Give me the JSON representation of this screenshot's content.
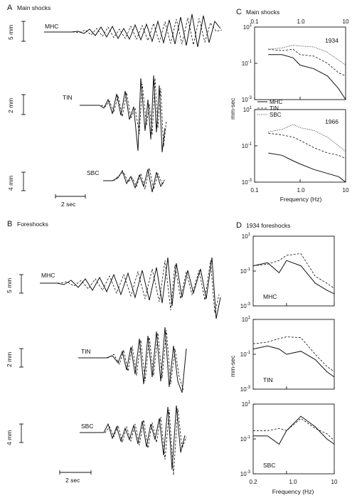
{
  "panels": {
    "A": {
      "letter": "A",
      "title": "Main shocks"
    },
    "B": {
      "letter": "B",
      "title": "Foreshocks"
    },
    "C": {
      "letter": "C",
      "title": "Main shocks"
    },
    "D": {
      "letter": "D",
      "title": "1934 foreshocks"
    }
  },
  "seismograms": {
    "main": [
      {
        "station": "MHC",
        "scale": "5 mm"
      },
      {
        "station": "TIN",
        "scale": "2 mm"
      },
      {
        "station": "SBC",
        "scale": "4 mm"
      }
    ],
    "fore": [
      {
        "station": "MHC",
        "scale": "5 mm"
      },
      {
        "station": "TIN",
        "scale": "2 mm"
      },
      {
        "station": "SBC",
        "scale": "4 mm"
      }
    ],
    "time_bar": "2 sec"
  },
  "spectra": {
    "ylabel": "mm-sec",
    "xlabel": "Frequency (Hz)",
    "c_top_ticks": [
      "0.1",
      "1.0",
      "10"
    ],
    "c_x_ticks": [
      "0.1",
      "1.0",
      "10"
    ],
    "d_x_ticks": [
      "0.2",
      "1.0",
      "10"
    ],
    "y_ticks": {
      "base": "10",
      "exps": [
        "1",
        "-1",
        "-3"
      ]
    },
    "legend": [
      {
        "label": "MHC",
        "style": "solid"
      },
      {
        "label": "TIN",
        "style": "dashed"
      },
      {
        "label": "SBC",
        "style": "dotted"
      }
    ],
    "years": [
      "1934",
      "1966"
    ],
    "d_stations": [
      "MHC",
      "TIN",
      "SBC"
    ]
  },
  "chart_data": [
    {
      "type": "line",
      "title": "Main shocks",
      "subtitle": "1934",
      "xlabel": "Frequency (Hz)",
      "ylabel": "mm-sec",
      "x_scale": "log",
      "y_scale": "log",
      "xlim": [
        0.1,
        10
      ],
      "ylim": [
        0.001,
        10
      ],
      "series": [
        {
          "name": "MHC",
          "x": [
            0.2,
            0.4,
            0.7,
            1.0,
            2.0,
            4.0,
            7.0,
            10.0
          ],
          "y": [
            0.3,
            0.3,
            0.2,
            0.08,
            0.05,
            0.02,
            0.004,
            0.001
          ]
        },
        {
          "name": "TIN",
          "x": [
            0.2,
            0.4,
            0.7,
            1.0,
            2.0,
            4.0,
            7.0,
            10.0
          ],
          "y": [
            0.6,
            0.5,
            0.6,
            0.3,
            0.25,
            0.1,
            0.03,
            0.02
          ]
        },
        {
          "name": "SBC",
          "x": [
            0.2,
            0.4,
            0.7,
            1.0,
            2.0,
            4.0,
            7.0,
            10.0
          ],
          "y": [
            0.6,
            0.7,
            1.0,
            0.9,
            0.8,
            0.4,
            0.15,
            0.08
          ]
        }
      ]
    },
    {
      "type": "line",
      "title": "Main shocks",
      "subtitle": "1966",
      "xlabel": "Frequency (Hz)",
      "ylabel": "mm-sec",
      "x_scale": "log",
      "y_scale": "log",
      "xlim": [
        0.1,
        10
      ],
      "ylim": [
        0.001,
        10
      ],
      "series": [
        {
          "name": "MHC",
          "x": [
            0.2,
            0.4,
            0.7,
            1.0,
            2.0,
            4.0,
            7.0,
            10.0
          ],
          "y": [
            0.04,
            0.03,
            0.015,
            0.01,
            0.005,
            0.003,
            0.002,
            0.001
          ]
        },
        {
          "name": "TIN",
          "x": [
            0.2,
            0.4,
            0.7,
            1.0,
            2.0,
            4.0,
            7.0,
            10.0
          ],
          "y": [
            0.5,
            0.4,
            0.3,
            0.2,
            0.08,
            0.04,
            0.03,
            0.02
          ]
        },
        {
          "name": "SBC",
          "x": [
            0.2,
            0.4,
            0.7,
            1.0,
            2.0,
            4.0,
            7.0,
            10.0
          ],
          "y": [
            0.6,
            0.8,
            1.5,
            1.0,
            0.7,
            0.3,
            0.1,
            0.05
          ]
        }
      ]
    },
    {
      "type": "line",
      "title": "1934 foreshocks",
      "subtitle": "MHC",
      "xlabel": "Frequency (Hz)",
      "ylabel": "mm-sec",
      "x_scale": "log",
      "y_scale": "log",
      "xlim": [
        0.2,
        10
      ],
      "ylim": [
        0.001,
        10
      ],
      "series": [
        {
          "name": "solid",
          "x": [
            0.2,
            0.4,
            0.7,
            1.0,
            2.0,
            4.0,
            7.0,
            10.0
          ],
          "y": [
            0.2,
            0.3,
            0.08,
            0.4,
            0.2,
            0.02,
            0.008,
            0.005
          ]
        },
        {
          "name": "dashed",
          "x": [
            0.2,
            0.4,
            0.7,
            1.0,
            2.0,
            4.0,
            7.0,
            10.0
          ],
          "y": [
            0.2,
            0.25,
            0.4,
            0.8,
            1.0,
            0.05,
            0.02,
            0.01
          ]
        }
      ]
    },
    {
      "type": "line",
      "title": "1934 foreshocks",
      "subtitle": "TIN",
      "xlabel": "Frequency (Hz)",
      "ylabel": "mm-sec",
      "x_scale": "log",
      "y_scale": "log",
      "xlim": [
        0.2,
        10
      ],
      "ylim": [
        0.001,
        10
      ],
      "series": [
        {
          "name": "solid",
          "x": [
            0.2,
            0.4,
            0.7,
            1.0,
            2.0,
            4.0,
            7.0,
            10.0
          ],
          "y": [
            0.2,
            0.3,
            0.2,
            0.1,
            0.15,
            0.05,
            0.01,
            0.005
          ]
        },
        {
          "name": "dashed",
          "x": [
            0.2,
            0.4,
            0.7,
            1.0,
            2.0,
            4.0,
            7.0,
            10.0
          ],
          "y": [
            0.4,
            0.5,
            0.8,
            1.0,
            0.9,
            0.1,
            0.02,
            0.01
          ]
        }
      ]
    },
    {
      "type": "line",
      "title": "1934 foreshocks",
      "subtitle": "SBC",
      "xlabel": "Frequency (Hz)",
      "ylabel": "mm-sec",
      "x_scale": "log",
      "y_scale": "log",
      "xlim": [
        0.2,
        10
      ],
      "ylim": [
        0.001,
        10
      ],
      "series": [
        {
          "name": "solid",
          "x": [
            0.2,
            0.4,
            0.7,
            1.0,
            2.0,
            4.0,
            7.0,
            10.0
          ],
          "y": [
            0.15,
            0.15,
            0.05,
            0.3,
            2.0,
            0.5,
            0.1,
            0.05
          ]
        },
        {
          "name": "dashed",
          "x": [
            0.2,
            0.4,
            0.7,
            1.0,
            2.0,
            4.0,
            7.0,
            10.0
          ],
          "y": [
            0.3,
            0.3,
            0.4,
            0.3,
            1.5,
            0.4,
            0.2,
            0.08
          ]
        }
      ]
    }
  ]
}
